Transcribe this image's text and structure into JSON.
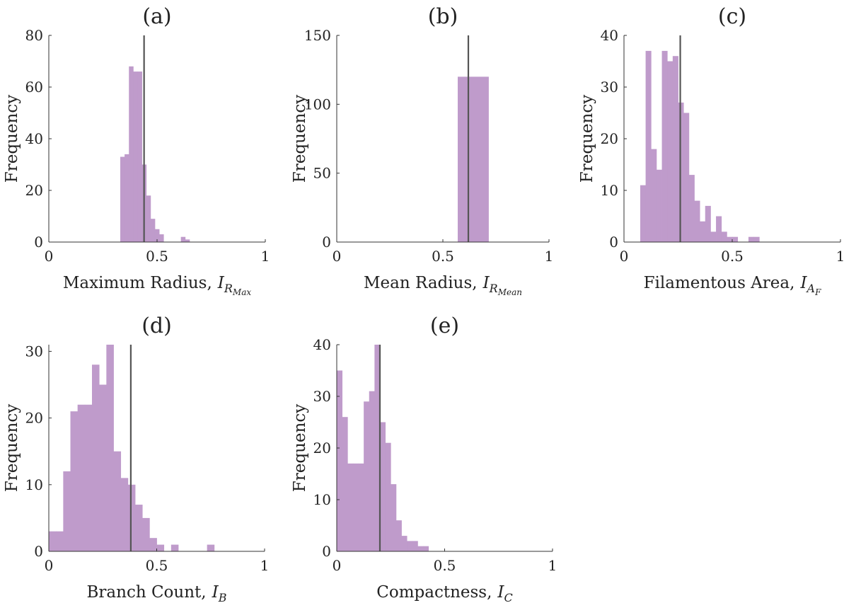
{
  "colors": {
    "bar": "#bf9bcb",
    "median_line": "#555555",
    "axis": "#333333"
  },
  "chart_data": [
    {
      "type": "bar",
      "title": "(a)",
      "xlabel": "Maximum Radius,",
      "xlabel_symbol": "I",
      "xlabel_sub": "R",
      "xlabel_subsub": "Max",
      "ylabel": "Frequency",
      "xlim": [
        0,
        1
      ],
      "ylim": [
        0,
        80
      ],
      "xticks": [
        "0",
        "0.5",
        "1"
      ],
      "yticks": [
        "0",
        "20",
        "40",
        "60",
        "80"
      ],
      "bin_width": 0.02,
      "bins": [
        {
          "x": 0.33,
          "value": 33
        },
        {
          "x": 0.35,
          "value": 34
        },
        {
          "x": 0.37,
          "value": 68
        },
        {
          "x": 0.39,
          "value": 66
        },
        {
          "x": 0.41,
          "value": 66
        },
        {
          "x": 0.43,
          "value": 30
        },
        {
          "x": 0.45,
          "value": 18
        },
        {
          "x": 0.47,
          "value": 9
        },
        {
          "x": 0.49,
          "value": 5
        },
        {
          "x": 0.51,
          "value": 3
        },
        {
          "x": 0.53,
          "value": 0
        },
        {
          "x": 0.55,
          "value": 0
        },
        {
          "x": 0.57,
          "value": 0
        },
        {
          "x": 0.59,
          "value": 0
        },
        {
          "x": 0.61,
          "value": 2
        },
        {
          "x": 0.63,
          "value": 1
        }
      ],
      "median_line": 0.44
    },
    {
      "type": "bar",
      "title": "(b)",
      "xlabel": "Mean Radius,",
      "xlabel_symbol": "I",
      "xlabel_sub": "R",
      "xlabel_subsub": "Mean",
      "ylabel": "Frequency",
      "xlim": [
        0,
        1
      ],
      "ylim": [
        0,
        150
      ],
      "xticks": [
        "0",
        "0.5",
        "1"
      ],
      "yticks": [
        "0",
        "50",
        "100",
        "150"
      ],
      "bin_width": 0.145,
      "bins": [
        {
          "x": 0.57,
          "value": 120
        }
      ],
      "median_line": 0.62
    },
    {
      "type": "bar",
      "title": "(c)",
      "xlabel": "Filamentous Area,",
      "xlabel_symbol": "I",
      "xlabel_sub": "A",
      "xlabel_subsub": "F",
      "ylabel": "Frequency",
      "xlim": [
        0,
        1
      ],
      "ylim": [
        0,
        40
      ],
      "xticks": [
        "0",
        "0.5",
        "1"
      ],
      "yticks": [
        "0",
        "10",
        "20",
        "30",
        "40"
      ],
      "bin_width": 0.025,
      "bins": [
        {
          "x": 0.075,
          "value": 11
        },
        {
          "x": 0.1,
          "value": 37
        },
        {
          "x": 0.125,
          "value": 18
        },
        {
          "x": 0.15,
          "value": 14
        },
        {
          "x": 0.175,
          "value": 37
        },
        {
          "x": 0.2,
          "value": 35
        },
        {
          "x": 0.225,
          "value": 36
        },
        {
          "x": 0.25,
          "value": 27
        },
        {
          "x": 0.275,
          "value": 25
        },
        {
          "x": 0.3,
          "value": 13
        },
        {
          "x": 0.325,
          "value": 8
        },
        {
          "x": 0.35,
          "value": 4
        },
        {
          "x": 0.375,
          "value": 7
        },
        {
          "x": 0.4,
          "value": 2
        },
        {
          "x": 0.425,
          "value": 5
        },
        {
          "x": 0.45,
          "value": 2
        },
        {
          "x": 0.475,
          "value": 1
        },
        {
          "x": 0.5,
          "value": 1
        },
        {
          "x": 0.525,
          "value": 0
        },
        {
          "x": 0.55,
          "value": 0
        },
        {
          "x": 0.575,
          "value": 1
        },
        {
          "x": 0.6,
          "value": 1
        }
      ],
      "median_line": 0.26
    },
    {
      "type": "bar",
      "title": "(d)",
      "xlabel": "Branch Count,",
      "xlabel_symbol": "I",
      "xlabel_sub": "B",
      "xlabel_subsub": "",
      "ylabel": "Frequency",
      "xlim": [
        0,
        1
      ],
      "ylim": [
        0,
        31
      ],
      "xticks": [
        "0",
        "0.5",
        "1"
      ],
      "yticks": [
        "0",
        "10",
        "20",
        "30"
      ],
      "bin_width": 0.0333,
      "bins": [
        {
          "x": 0.0,
          "value": 3
        },
        {
          "x": 0.0333,
          "value": 3
        },
        {
          "x": 0.0667,
          "value": 12
        },
        {
          "x": 0.1,
          "value": 21
        },
        {
          "x": 0.1333,
          "value": 22
        },
        {
          "x": 0.1667,
          "value": 22
        },
        {
          "x": 0.2,
          "value": 28
        },
        {
          "x": 0.2333,
          "value": 25
        },
        {
          "x": 0.2667,
          "value": 31
        },
        {
          "x": 0.3,
          "value": 15
        },
        {
          "x": 0.3333,
          "value": 11
        },
        {
          "x": 0.3667,
          "value": 10
        },
        {
          "x": 0.4,
          "value": 7
        },
        {
          "x": 0.4333,
          "value": 5
        },
        {
          "x": 0.4667,
          "value": 2
        },
        {
          "x": 0.5,
          "value": 1
        },
        {
          "x": 0.5333,
          "value": 0
        },
        {
          "x": 0.5667,
          "value": 1
        },
        {
          "x": 0.6,
          "value": 0
        },
        {
          "x": 0.6333,
          "value": 0
        },
        {
          "x": 0.6667,
          "value": 0
        },
        {
          "x": 0.7,
          "value": 0
        },
        {
          "x": 0.7333,
          "value": 1
        }
      ],
      "median_line": 0.38
    },
    {
      "type": "bar",
      "title": "(e)",
      "xlabel": "Compactness,",
      "xlabel_symbol": "I",
      "xlabel_sub": "C",
      "xlabel_subsub": "",
      "ylabel": "Frequency",
      "xlim": [
        0,
        1
      ],
      "ylim": [
        0,
        40
      ],
      "xticks": [
        "0",
        "0.5",
        "1"
      ],
      "yticks": [
        "0",
        "10",
        "20",
        "30",
        "40"
      ],
      "bin_width": 0.025,
      "bins": [
        {
          "x": 0.0,
          "value": 35
        },
        {
          "x": 0.025,
          "value": 26
        },
        {
          "x": 0.05,
          "value": 17
        },
        {
          "x": 0.075,
          "value": 17
        },
        {
          "x": 0.1,
          "value": 17
        },
        {
          "x": 0.125,
          "value": 29
        },
        {
          "x": 0.15,
          "value": 31
        },
        {
          "x": 0.175,
          "value": 40
        },
        {
          "x": 0.2,
          "value": 25
        },
        {
          "x": 0.225,
          "value": 21
        },
        {
          "x": 0.25,
          "value": 13
        },
        {
          "x": 0.275,
          "value": 6
        },
        {
          "x": 0.3,
          "value": 3
        },
        {
          "x": 0.325,
          "value": 2
        },
        {
          "x": 0.35,
          "value": 2
        },
        {
          "x": 0.375,
          "value": 1
        },
        {
          "x": 0.4,
          "value": 1
        }
      ],
      "median_line": 0.2
    }
  ]
}
